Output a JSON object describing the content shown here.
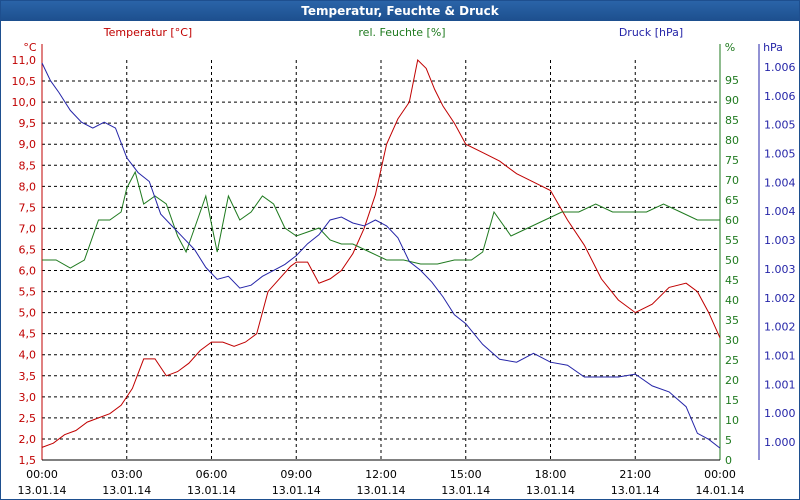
{
  "window_title": "Temperatur, Feuchte & Druck",
  "chart_data": {
    "type": "line",
    "title": "Temperatur, Feuchte & Druck",
    "x_ticks": [
      {
        "time": "00:00",
        "date": "13.01.14"
      },
      {
        "time": "03:00",
        "date": "13.01.14"
      },
      {
        "time": "06:00",
        "date": "13.01.14"
      },
      {
        "time": "09:00",
        "date": "13.01.14"
      },
      {
        "time": "12:00",
        "date": "13.01.14"
      },
      {
        "time": "15:00",
        "date": "13.01.14"
      },
      {
        "time": "18:00",
        "date": "13.01.14"
      },
      {
        "time": "21:00",
        "date": "13.01.14"
      },
      {
        "time": "00:00",
        "date": "14.01.14"
      }
    ],
    "x_range_hours": [
      0,
      24
    ],
    "axes": {
      "temperature": {
        "unit": "°C",
        "range": [
          1.5,
          11.0
        ],
        "ticks": [
          "1,5",
          "2,0",
          "2,5",
          "3,0",
          "3,5",
          "4,0",
          "4,5",
          "5,0",
          "5,5",
          "6,0",
          "6,5",
          "7,0",
          "7,5",
          "8,0",
          "8,5",
          "9,0",
          "9,5",
          "10,0",
          "10,5",
          "11,0"
        ]
      },
      "humidity": {
        "unit": "%",
        "range": [
          0,
          100
        ],
        "ticks": [
          "0",
          "5",
          "10",
          "15",
          "20",
          "25",
          "30",
          "35",
          "40",
          "45",
          "50",
          "55",
          "60",
          "65",
          "70",
          "75",
          "80",
          "85",
          "90",
          "95"
        ]
      },
      "pressure": {
        "unit": "hPa",
        "range": [
          999.55,
          1006.3
        ],
        "ticks": [
          "1.000",
          "1.000",
          "1.001",
          "1.001",
          "1.002",
          "1.002",
          "1.003",
          "1.003",
          "1.004",
          "1.004",
          "1.005",
          "1.005",
          "1.006",
          "1.006"
        ]
      }
    },
    "series": [
      {
        "name": "Temperatur [°C]",
        "axis": "temperature",
        "color": "#c00000",
        "x": [
          0,
          0.4,
          0.8,
          1.2,
          1.6,
          2.0,
          2.4,
          2.8,
          3.2,
          3.6,
          4.0,
          4.4,
          4.8,
          5.2,
          5.6,
          6.0,
          6.4,
          6.8,
          7.2,
          7.6,
          8.0,
          8.4,
          8.8,
          9.0,
          9.4,
          9.8,
          10.2,
          10.6,
          11.0,
          11.4,
          11.8,
          12.2,
          12.6,
          13.0,
          13.3,
          13.6,
          13.9,
          14.2,
          14.6,
          15.0,
          15.6,
          16.2,
          16.8,
          17.4,
          18.0,
          18.6,
          19.2,
          19.8,
          20.4,
          21.0,
          21.6,
          22.2,
          22.8,
          23.2,
          23.6,
          24.0
        ],
        "y": [
          1.8,
          1.9,
          2.1,
          2.2,
          2.4,
          2.5,
          2.6,
          2.8,
          3.2,
          3.9,
          3.9,
          3.5,
          3.6,
          3.8,
          4.1,
          4.3,
          4.3,
          4.2,
          4.3,
          4.5,
          5.5,
          5.8,
          6.1,
          6.2,
          6.2,
          5.7,
          5.8,
          6.0,
          6.4,
          7.0,
          7.8,
          9.0,
          9.6,
          10.0,
          11.0,
          10.8,
          10.3,
          9.9,
          9.5,
          9.0,
          8.8,
          8.6,
          8.3,
          8.1,
          7.9,
          7.2,
          6.6,
          5.8,
          5.3,
          5.0,
          5.2,
          5.6,
          5.7,
          5.5,
          5.0,
          4.4
        ]
      },
      {
        "name": "rel. Feuchte [%]",
        "axis": "humidity",
        "color": "#1f7a1f",
        "x": [
          0,
          0.5,
          1.0,
          1.5,
          2.0,
          2.4,
          2.8,
          3.0,
          3.3,
          3.6,
          4.0,
          4.4,
          4.8,
          5.1,
          5.4,
          5.8,
          6.2,
          6.6,
          7.0,
          7.4,
          7.8,
          8.2,
          8.6,
          9.0,
          9.4,
          9.8,
          10.2,
          10.6,
          11.0,
          11.6,
          12.2,
          12.8,
          13.4,
          14.0,
          14.6,
          15.2,
          15.6,
          16.0,
          16.6,
          17.2,
          17.8,
          18.4,
          19.0,
          19.6,
          20.2,
          20.8,
          21.4,
          22.0,
          22.6,
          23.2,
          23.6,
          24.0
        ],
        "y": [
          50,
          50,
          48,
          50,
          60,
          60,
          62,
          68,
          72,
          64,
          66,
          64,
          56,
          52,
          58,
          66,
          52,
          66,
          60,
          62,
          66,
          64,
          58,
          56,
          57,
          58,
          55,
          54,
          54,
          52,
          50,
          50,
          49,
          49,
          50,
          50,
          52,
          62,
          56,
          58,
          60,
          62,
          62,
          64,
          62,
          62,
          62,
          64,
          62,
          60,
          60,
          60
        ]
      },
      {
        "name": "Druck [hPa]",
        "axis": "pressure",
        "color": "#2525a8",
        "x": [
          0,
          0.3,
          0.6,
          1.0,
          1.4,
          1.8,
          2.2,
          2.6,
          3.0,
          3.4,
          3.8,
          4.2,
          4.6,
          5.0,
          5.4,
          5.8,
          6.2,
          6.6,
          7.0,
          7.4,
          7.8,
          8.2,
          8.6,
          9.0,
          9.4,
          9.8,
          10.2,
          10.6,
          11.0,
          11.4,
          11.8,
          12.2,
          12.6,
          13.0,
          13.4,
          13.8,
          14.2,
          14.6,
          15.0,
          15.6,
          16.2,
          16.8,
          17.4,
          18.0,
          18.6,
          19.2,
          19.8,
          20.4,
          21.0,
          21.6,
          22.2,
          22.8,
          23.2,
          23.6,
          24.0
        ],
        "y": [
          1006.25,
          1005.95,
          1005.75,
          1005.45,
          1005.25,
          1005.15,
          1005.25,
          1005.15,
          1004.65,
          1004.4,
          1004.25,
          1003.7,
          1003.5,
          1003.3,
          1003.1,
          1002.8,
          1002.6,
          1002.65,
          1002.45,
          1002.5,
          1002.65,
          1002.75,
          1002.85,
          1003.0,
          1003.2,
          1003.35,
          1003.6,
          1003.65,
          1003.55,
          1003.5,
          1003.6,
          1003.5,
          1003.3,
          1002.9,
          1002.75,
          1002.55,
          1002.3,
          1002.0,
          1001.85,
          1001.5,
          1001.25,
          1001.2,
          1001.35,
          1001.2,
          1001.15,
          1000.95,
          1000.95,
          1000.95,
          1001.0,
          1000.8,
          1000.7,
          1000.45,
          1000.0,
          999.9,
          999.75
        ]
      }
    ],
    "legend": {
      "temperature": "Temperatur [°C]",
      "humidity": "rel. Feuchte [%]",
      "pressure": "Druck [hPa]"
    },
    "axis_units": {
      "temperature": "°C",
      "humidity": "%",
      "pressure": "hPa"
    },
    "grid": true
  }
}
